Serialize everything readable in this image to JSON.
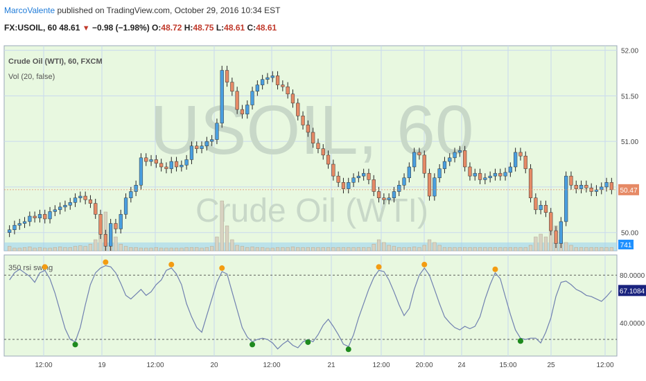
{
  "header": {
    "author": "MarcoValente",
    "published": "published on TradingView.com, October 29, 2016 10:34 EST",
    "symbol": "FX:USOIL, 60",
    "last": "48.61",
    "change": "−0.98 (−1.98%)",
    "o_label": "O:",
    "o_value": "48.72",
    "h_label": "H:",
    "h_value": "48.75",
    "l_label": "L:",
    "l_value": "48.61",
    "c_label": "C:",
    "c_value": "48.61"
  },
  "panel": {
    "title": "Crude Oil (WTI), 60, FXCM",
    "indicator": "Vol (20, false)",
    "watermark_symbol": "USOIL, 60",
    "watermark_name": "Crude Oil (WTI)",
    "osc_title": "350 rsi swing"
  },
  "colors": {
    "background": "#e8f8e0",
    "up": "#4a9fe0",
    "down": "#e68a66",
    "osc_line": "#7080b0",
    "peak_marker": "#f39c12",
    "trough_marker": "#1e8a1e",
    "price_tag": "#e68a66",
    "osc_tag": "#1a237e",
    "volume_tag": "#1e90ff"
  },
  "chart_data": [
    {
      "type": "candlestick",
      "title": "Crude Oil (WTI), 60, FXCM",
      "ylim": [
        49.8,
        52.05
      ],
      "y_ticks": [
        "52.00",
        "51.50",
        "51.00",
        "50.47",
        "50.00"
      ],
      "last_price": "50.47",
      "volume_last": "741",
      "close": [
        50.03,
        50.08,
        50.1,
        50.12,
        50.18,
        50.16,
        50.2,
        50.15,
        50.23,
        50.25,
        50.28,
        50.3,
        50.33,
        50.38,
        50.4,
        50.36,
        50.32,
        50.2,
        49.98,
        49.85,
        50.1,
        50.04,
        50.2,
        50.38,
        50.45,
        50.52,
        50.82,
        50.78,
        50.8,
        50.76,
        50.72,
        50.7,
        50.78,
        50.72,
        50.74,
        50.8,
        50.95,
        50.92,
        50.95,
        51.0,
        51.02,
        51.2,
        51.78,
        51.65,
        51.55,
        51.35,
        51.3,
        51.4,
        51.55,
        51.62,
        51.68,
        51.7,
        51.72,
        51.62,
        51.6,
        51.52,
        51.42,
        51.28,
        51.18,
        51.1,
        50.98,
        50.92,
        50.85,
        50.75,
        50.62,
        50.55,
        50.48,
        50.55,
        50.6,
        50.62,
        50.65,
        50.58,
        50.45,
        50.38,
        50.36,
        50.38,
        50.45,
        50.52,
        50.6,
        50.72,
        50.88,
        50.85,
        50.65,
        50.4,
        50.6,
        50.7,
        50.78,
        50.82,
        50.88,
        50.9,
        50.72,
        50.62,
        50.65,
        50.58,
        50.6,
        50.62,
        50.65,
        50.62,
        50.66,
        50.72,
        50.88,
        50.84,
        50.7,
        50.38,
        50.25,
        50.3,
        50.22,
        50.02,
        49.88,
        50.12,
        50.62,
        50.52,
        50.48,
        50.52,
        50.49,
        50.45,
        50.47,
        50.5,
        50.55,
        50.47
      ],
      "volume_relative": [
        0.08,
        0.05,
        0.05,
        0.06,
        0.07,
        0.05,
        0.06,
        0.05,
        0.05,
        0.06,
        0.07,
        0.06,
        0.06,
        0.08,
        0.09,
        0.08,
        0.12,
        0.2,
        0.55,
        0.7,
        0.35,
        0.25,
        0.12,
        0.08,
        0.06,
        0.06,
        0.05,
        0.05,
        0.05,
        0.06,
        0.05,
        0.05,
        0.05,
        0.05,
        0.05,
        0.06,
        0.06,
        0.06,
        0.05,
        0.06,
        0.08,
        0.25,
        0.9,
        0.45,
        0.2,
        0.1,
        0.08,
        0.06,
        0.07,
        0.06,
        0.06,
        0.05,
        0.05,
        0.06,
        0.06,
        0.06,
        0.07,
        0.06,
        0.06,
        0.06,
        0.06,
        0.06,
        0.06,
        0.06,
        0.06,
        0.06,
        0.06,
        0.06,
        0.06,
        0.06,
        0.06,
        0.06,
        0.12,
        0.2,
        0.15,
        0.1,
        0.08,
        0.06,
        0.06,
        0.06,
        0.07,
        0.06,
        0.1,
        0.2,
        0.15,
        0.1,
        0.06,
        0.06,
        0.06,
        0.06,
        0.06,
        0.06,
        0.06,
        0.06,
        0.06,
        0.06,
        0.06,
        0.06,
        0.06,
        0.06,
        0.06,
        0.06,
        0.06,
        0.1,
        0.25,
        0.3,
        0.25,
        0.35,
        0.45,
        0.3,
        0.15,
        0.1,
        0.06,
        0.06,
        0.06,
        0.06,
        0.06,
        0.06,
        0.06,
        0.06
      ]
    },
    {
      "type": "line",
      "title": "350 rsi swing",
      "ylim": [
        12,
        97
      ],
      "y_ticks": [
        "80.0000",
        "40.0000"
      ],
      "levels": [
        80,
        26
      ],
      "last_value": "67.1084",
      "values": [
        76,
        82,
        85,
        82,
        79,
        74,
        82,
        84,
        77,
        65,
        50,
        35,
        26,
        24,
        36,
        55,
        72,
        82,
        86,
        88,
        87,
        82,
        73,
        63,
        60,
        64,
        68,
        63,
        66,
        72,
        76,
        84,
        86,
        81,
        72,
        56,
        45,
        36,
        32,
        46,
        60,
        74,
        83,
        81,
        66,
        51,
        36,
        28,
        24,
        26,
        27,
        26,
        23,
        18,
        22,
        25,
        21,
        19,
        24,
        26,
        24,
        30,
        38,
        43,
        37,
        30,
        22,
        20,
        30,
        44,
        56,
        68,
        78,
        84,
        83,
        76,
        66,
        55,
        46,
        52,
        68,
        80,
        86,
        80,
        68,
        56,
        45,
        40,
        36,
        34,
        37,
        35,
        37,
        45,
        60,
        72,
        82,
        77,
        62,
        47,
        34,
        27,
        26,
        27,
        27,
        23,
        32,
        44,
        62,
        74,
        75,
        72,
        68,
        66,
        63,
        62,
        60,
        58,
        62,
        67
      ]
    }
  ],
  "x_ticks": [
    "12:00",
    "19",
    "12:00",
    "20",
    "12:00",
    "21",
    "12:00",
    "20:00",
    "24",
    "15:00",
    "25",
    "12:00"
  ]
}
